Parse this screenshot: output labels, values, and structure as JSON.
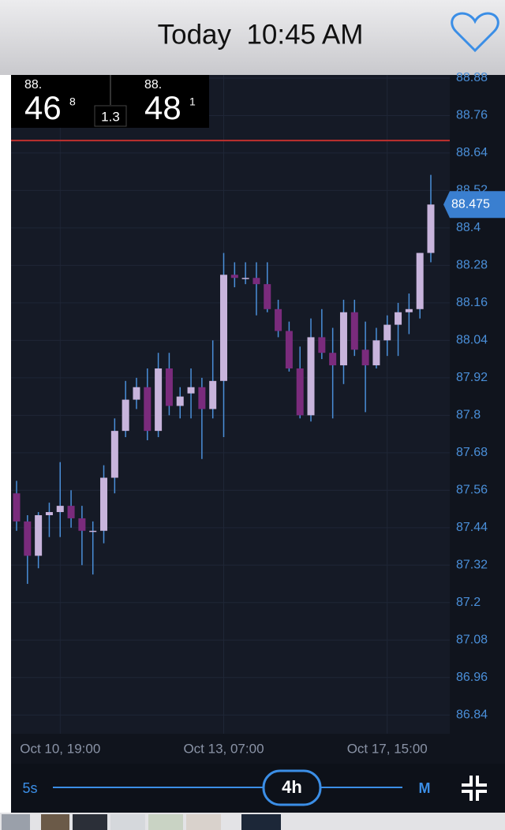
{
  "header": {
    "title": "Today  10:45 AM"
  },
  "quote": {
    "bid_big": "88.",
    "bid": "46",
    "bid_pip": "8",
    "spread": "1.3",
    "ask_big": "88.",
    "ask": "48",
    "ask_pip": "1"
  },
  "chart_data": {
    "type": "candlestick",
    "categories": [
      null,
      null,
      null,
      null,
      "Oct 10, 19:00",
      null,
      null,
      null,
      null,
      null,
      null,
      null,
      null,
      null,
      null,
      null,
      null,
      null,
      null,
      "Oct 13, 07:00",
      null,
      null,
      null,
      null,
      null,
      null,
      null,
      null,
      null,
      null,
      null,
      null,
      null,
      null,
      "Oct 17, 15:00",
      null,
      null,
      null,
      null
    ],
    "open": [
      87.55,
      87.46,
      87.35,
      87.48,
      87.49,
      87.51,
      87.47,
      87.43,
      87.43,
      87.6,
      87.75,
      87.85,
      87.89,
      87.75,
      87.95,
      87.83,
      87.87,
      87.89,
      87.82,
      87.91,
      88.25,
      88.24,
      88.24,
      88.22,
      88.14,
      88.07,
      87.95,
      87.8,
      88.05,
      88.0,
      87.96,
      88.13,
      88.01,
      87.96,
      88.04,
      88.09,
      88.13,
      88.14,
      88.32
    ],
    "high": [
      87.59,
      87.48,
      87.49,
      87.52,
      87.65,
      87.56,
      87.51,
      87.46,
      87.64,
      87.79,
      87.91,
      87.92,
      87.95,
      88.0,
      88.0,
      87.89,
      87.95,
      87.92,
      88.04,
      88.32,
      88.29,
      88.29,
      88.29,
      88.29,
      88.17,
      88.1,
      88.02,
      88.11,
      88.14,
      88.08,
      88.17,
      88.17,
      88.1,
      88.08,
      88.12,
      88.16,
      88.19,
      88.32,
      88.57
    ],
    "low": [
      87.43,
      87.26,
      87.31,
      87.41,
      87.41,
      87.44,
      87.32,
      87.29,
      87.39,
      87.55,
      87.73,
      87.82,
      87.72,
      87.73,
      87.8,
      87.79,
      87.79,
      87.66,
      87.79,
      87.73,
      88.21,
      88.22,
      88.12,
      88.13,
      88.05,
      87.94,
      87.79,
      87.78,
      87.98,
      87.79,
      87.9,
      87.99,
      87.81,
      87.95,
      87.99,
      87.99,
      88.06,
      88.11,
      88.29
    ],
    "close": [
      87.46,
      87.35,
      87.48,
      87.49,
      87.51,
      87.47,
      87.43,
      87.43,
      87.6,
      87.75,
      87.85,
      87.89,
      87.75,
      87.95,
      87.83,
      87.86,
      87.89,
      87.82,
      87.91,
      88.25,
      88.24,
      88.24,
      88.22,
      88.14,
      88.07,
      87.95,
      87.8,
      88.05,
      88.0,
      87.96,
      88.13,
      88.01,
      87.96,
      88.04,
      88.09,
      88.13,
      88.14,
      88.32,
      88.475
    ],
    "up_color": "#c8b4dc",
    "down_color": "#7a2b7c",
    "wick_color": "#4a8fd9",
    "ylim": [
      86.78,
      88.89
    ],
    "yticks": [
      88.88,
      88.76,
      88.64,
      88.52,
      88.4,
      88.28,
      88.16,
      88.04,
      87.92,
      87.8,
      87.68,
      87.56,
      87.44,
      87.32,
      87.2,
      87.08,
      86.96,
      86.84
    ],
    "grid": true,
    "reference_line": 88.68,
    "reference_color": "#c0302e",
    "last_price": 88.475
  },
  "controls": {
    "min": "5s",
    "selected": "4h",
    "max": "M"
  }
}
